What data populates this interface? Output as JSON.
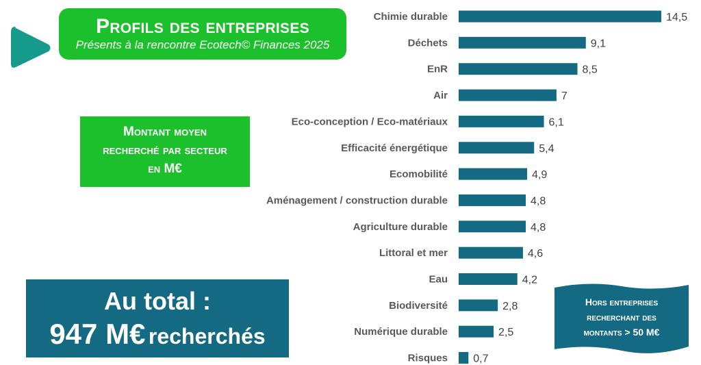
{
  "header": {
    "title": "Profils des entreprises",
    "subtitle": "Présents à la rencontre Ecotech© Finances 2025"
  },
  "chart_box": {
    "line1": "Montant moyen",
    "line2": "recherché par secteur",
    "line3": "en M€"
  },
  "total": {
    "line1": "Au total :",
    "amount": "947 M€",
    "suffix": "recherchés"
  },
  "note": {
    "line1": "Hors entreprises",
    "line2": "recherchant des",
    "line3": "montants > 50 M€"
  },
  "colors": {
    "bar": "#146a82",
    "green": "#1cbf2c",
    "play_icon": "#169a8c"
  },
  "icons": [
    "play-icon"
  ],
  "chart_data": {
    "type": "bar",
    "orientation": "horizontal",
    "categories": [
      "Chimie durable",
      "Déchets",
      "EnR",
      "Air",
      "Eco-conception / Eco-matériaux",
      "Efficacité énergétique",
      "Ecomobilité",
      "Aménagement / construction durable",
      "Agriculture durable",
      "Littoral et mer",
      "Eau",
      "Biodiversité",
      "Numérique durable",
      "Risques"
    ],
    "values": [
      14.5,
      9.1,
      8.5,
      7,
      6.1,
      5.4,
      4.9,
      4.8,
      4.8,
      4.6,
      4.2,
      2.8,
      2.5,
      0.7
    ],
    "value_labels": [
      "14,5",
      "9,1",
      "8,5",
      "7",
      "6,1",
      "5,4",
      "4,9",
      "4,8",
      "4,8",
      "4,6",
      "4,2",
      "2,8",
      "2,5",
      "0,7"
    ],
    "xlim": [
      0,
      14.5
    ],
    "grid": false,
    "legend": "none"
  }
}
